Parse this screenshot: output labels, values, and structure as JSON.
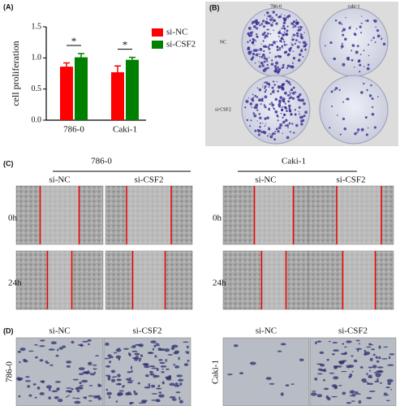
{
  "chart_data": {
    "type": "bar",
    "panel_label": "(A)",
    "y_label": "cell proliferation",
    "categories": [
      "786-0",
      "Caki-1"
    ],
    "series": [
      {
        "name": "si-NC",
        "color": "#ff0000",
        "values": [
          0.86,
          0.77
        ],
        "errors": [
          0.06,
          0.1
        ]
      },
      {
        "name": "si-CSF2",
        "color": "#008000",
        "values": [
          1.01,
          0.97
        ],
        "errors": [
          0.06,
          0.04
        ]
      }
    ],
    "ylim": [
      0,
      1.5
    ],
    "yticks": [
      {
        "value": 0,
        "label": "0.0"
      },
      0.5,
      {
        "value": 1,
        "label": "1.0"
      },
      1.5
    ],
    "annotations": [
      "*",
      "*"
    ]
  },
  "panel_b": {
    "label": "(B)",
    "columns": [
      "786-0",
      "caki-1"
    ],
    "rows": [
      "NC",
      "si-CSF2"
    ]
  },
  "panel_c": {
    "label": "(C)",
    "groups": [
      {
        "title": "786-0",
        "columns": [
          "si-NC",
          "si-CSF2"
        ],
        "rows": [
          "0h",
          "24h"
        ]
      },
      {
        "title": "Caki-1",
        "columns": [
          "si-NC",
          "si-CSF2"
        ],
        "rows": [
          "0h",
          "24h"
        ]
      }
    ]
  },
  "panel_d": {
    "label": "(D)",
    "groups": [
      {
        "title": "786-0",
        "columns": [
          "si-NC",
          "si-CSF2"
        ]
      },
      {
        "title": "Caki-1",
        "columns": [
          "si-NC",
          "si-CSF2"
        ]
      }
    ]
  }
}
